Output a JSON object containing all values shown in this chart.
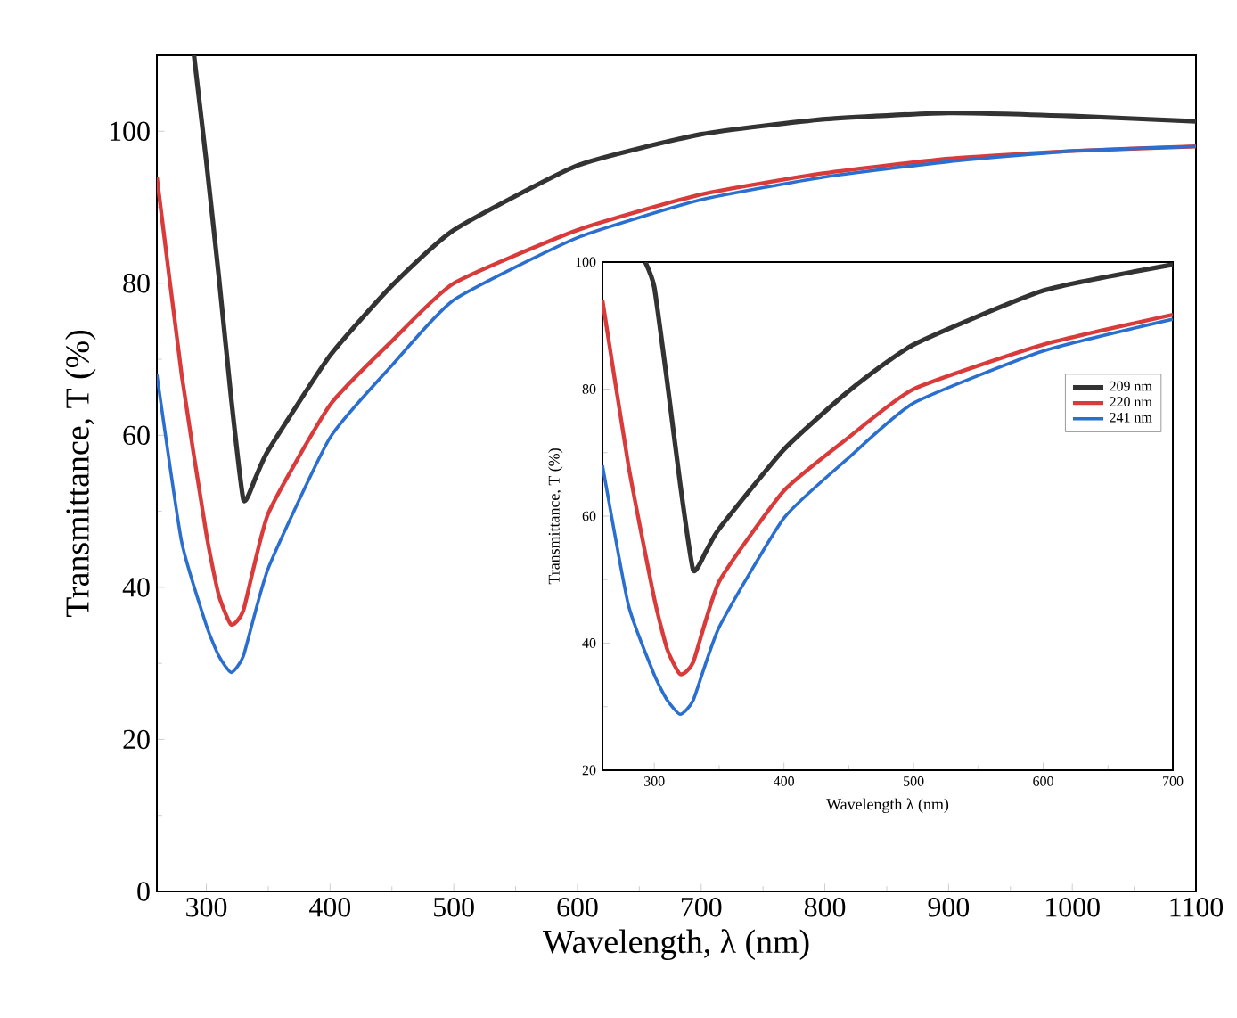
{
  "chart_data": [
    {
      "type": "line",
      "xlabel": "Wavelength, λ (nm)",
      "ylabel": "Transmittance, T (%)",
      "xlim": [
        260,
        1100
      ],
      "ylim": [
        0,
        110
      ],
      "xticks": [
        300,
        400,
        500,
        600,
        700,
        800,
        900,
        1000,
        1100
      ],
      "yticks": [
        0,
        20,
        40,
        60,
        80,
        100
      ],
      "marker": "none",
      "line_style": "solid",
      "series": [
        {
          "color": "#333333",
          "x": [
            290,
            300,
            310,
            320,
            330,
            340,
            350,
            400,
            450,
            500,
            600,
            700,
            800,
            900,
            1000,
            1100
          ],
          "values": [
            110,
            96,
            81,
            65,
            51.5,
            54.5,
            58,
            70.5,
            79.7,
            87,
            95.5,
            99.6,
            101.6,
            102.4,
            102,
            101.3
          ]
        },
        {
          "color": "#d93a3a",
          "x": [
            260,
            280,
            300,
            310,
            320,
            330,
            350,
            400,
            450,
            500,
            600,
            700,
            800,
            900,
            1000,
            1100
          ],
          "values": [
            94,
            68,
            47,
            39,
            35.1,
            37,
            49.7,
            64,
            72.4,
            80,
            87,
            91.7,
            94.5,
            96.4,
            97.4,
            98
          ]
        },
        {
          "color": "#2a6fcf",
          "x": [
            260,
            280,
            300,
            310,
            320,
            330,
            350,
            400,
            450,
            500,
            600,
            700,
            800,
            900,
            1000,
            1100
          ],
          "values": [
            68,
            46,
            35,
            31,
            28.8,
            31,
            42.5,
            59.7,
            69.2,
            77.8,
            86,
            91,
            94,
            96,
            97.4,
            98
          ]
        }
      ]
    },
    {
      "type": "line",
      "xlabel": "Wavelength λ (nm)",
      "ylabel": "Transmittance, T (%)",
      "xlim": [
        260,
        700
      ],
      "ylim": [
        20,
        100
      ],
      "xticks": [
        300,
        400,
        500,
        600,
        700
      ],
      "yticks": [
        20,
        40,
        60,
        80,
        100
      ],
      "marker": "none",
      "line_style": "solid",
      "legend": "right",
      "series": [
        {
          "name": "209 nm",
          "color": "#333333",
          "x": [
            293,
            300,
            310,
            320,
            330,
            340,
            350,
            400,
            450,
            500,
            600,
            700
          ],
          "values": [
            100,
            96,
            81,
            65,
            51.5,
            54.5,
            58,
            70.5,
            79.7,
            87,
            95.5,
            99.6
          ]
        },
        {
          "name": "220 nm",
          "color": "#d93a3a",
          "x": [
            260,
            280,
            300,
            310,
            320,
            330,
            350,
            400,
            450,
            500,
            600,
            700
          ],
          "values": [
            94,
            68,
            47,
            39,
            35.1,
            37,
            49.7,
            64,
            72.4,
            80,
            87,
            91.7
          ]
        },
        {
          "name": "241 nm",
          "color": "#2a6fcf",
          "x": [
            260,
            280,
            300,
            310,
            320,
            330,
            350,
            400,
            450,
            500,
            600,
            700
          ],
          "values": [
            68,
            46,
            35,
            31,
            28.8,
            31,
            42.5,
            59.7,
            69.2,
            77.8,
            86,
            91
          ]
        }
      ]
    }
  ]
}
